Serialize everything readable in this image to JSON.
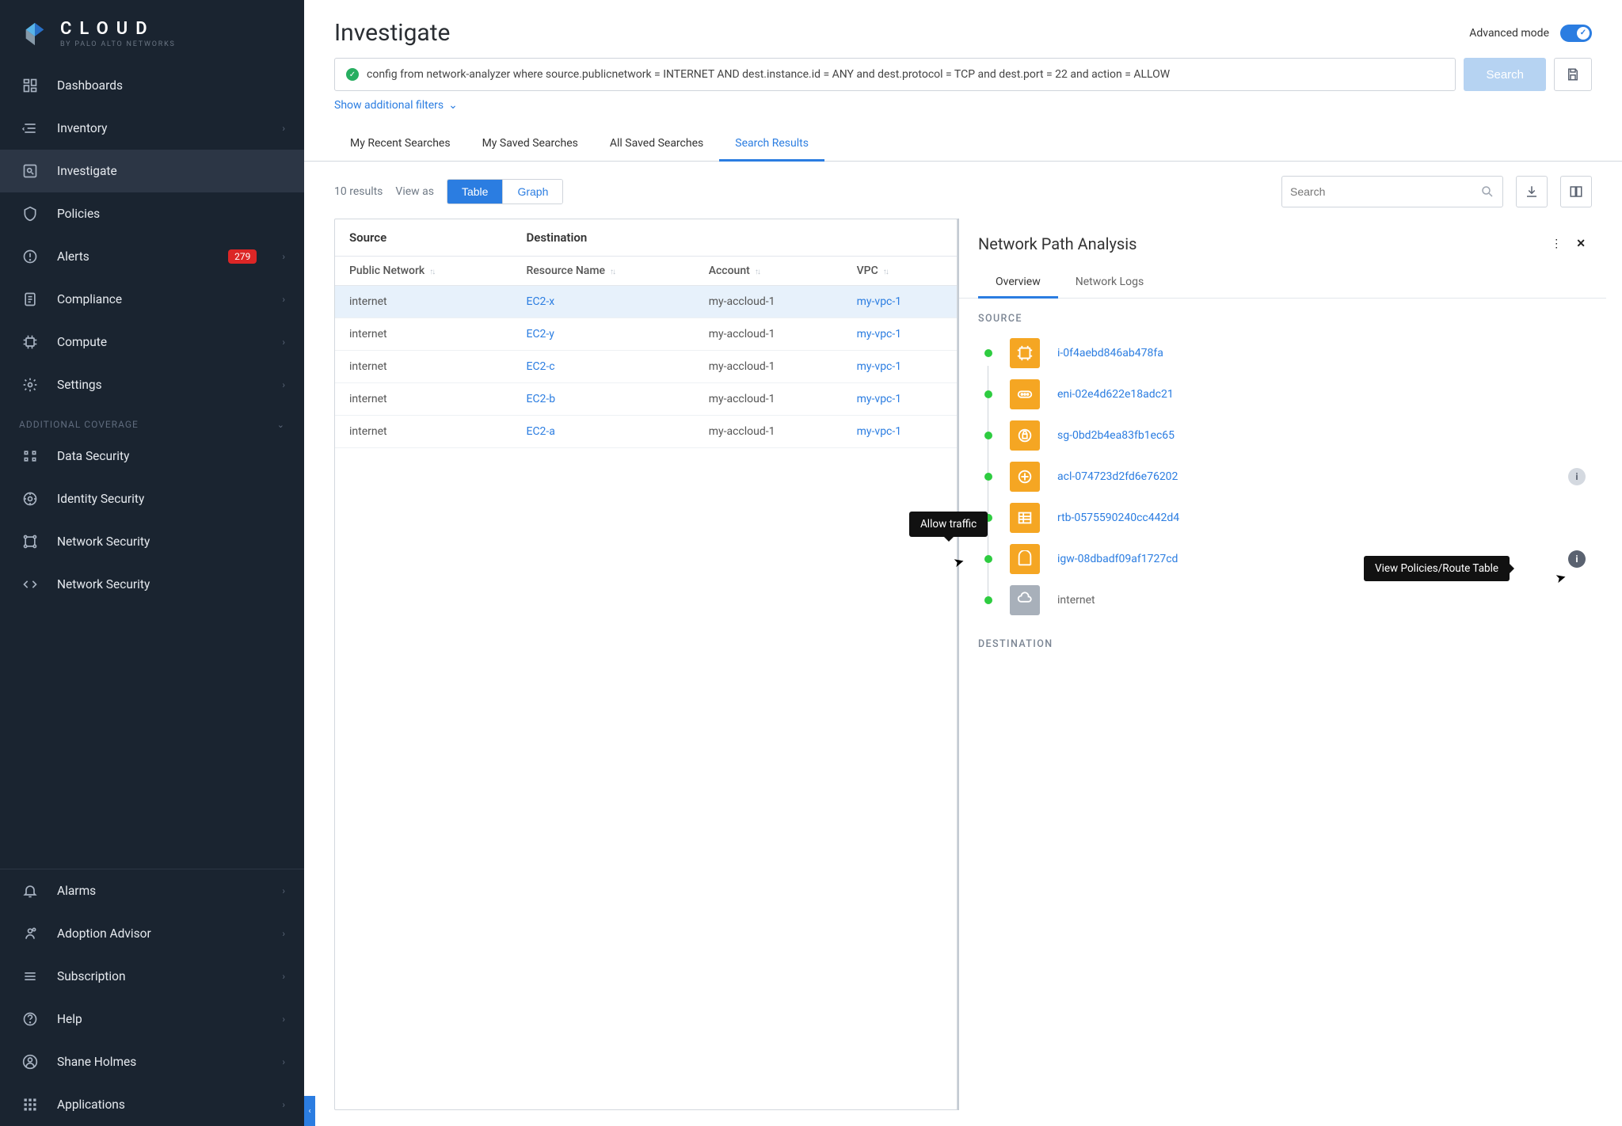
{
  "brand": {
    "title": "CLOUD",
    "subtitle": "BY PALO ALTO NETWORKS"
  },
  "sidebar": {
    "items": [
      {
        "label": "Dashboards"
      },
      {
        "label": "Inventory",
        "chev": true
      },
      {
        "label": "Investigate",
        "active": true
      },
      {
        "label": "Policies"
      },
      {
        "label": "Alerts",
        "badge": "279",
        "chev": true
      },
      {
        "label": "Compliance",
        "chev": true
      },
      {
        "label": "Compute",
        "chev": true
      },
      {
        "label": "Settings",
        "chev": true
      }
    ],
    "section_label": "ADDITIONAL COVERAGE",
    "coverage": [
      {
        "label": "Data Security"
      },
      {
        "label": "Identity Security"
      },
      {
        "label": "Network Security"
      },
      {
        "label": "Network Security"
      }
    ],
    "bottom": [
      {
        "label": "Alarms",
        "chev": true
      },
      {
        "label": "Adoption Advisor",
        "chev": true
      },
      {
        "label": "Subscription",
        "chev": true
      },
      {
        "label": "Help",
        "chev": true
      },
      {
        "label": "Shane Holmes",
        "chev": true
      },
      {
        "label": "Applications",
        "chev": true
      }
    ]
  },
  "page": {
    "title": "Investigate",
    "advanced_label": "Advanced mode"
  },
  "query": "config from network-analyzer where source.publicnetwork = INTERNET AND dest.instance.id = ANY and dest.protocol = TCP and dest.port = 22 and action = ALLOW",
  "search_btn": "Search",
  "filters_link": "Show additional filters",
  "tabs": [
    "My Recent Searches",
    "My Saved Searches",
    "All Saved Searches",
    "Search Results"
  ],
  "tabs_active": 3,
  "results": {
    "count": "10 results",
    "viewas": "View as",
    "modes": [
      "Table",
      "Graph"
    ],
    "modes_active": 0,
    "search_placeholder": "Search"
  },
  "table": {
    "groups": [
      "Source",
      "Destination"
    ],
    "columns": [
      "Public Network",
      "Resource Name",
      "Account",
      "VPC"
    ],
    "rows": [
      {
        "src": "internet",
        "res": "EC2-x",
        "acct": "my-accloud-1",
        "vpc": "my-vpc-1",
        "selected": true
      },
      {
        "src": "internet",
        "res": "EC2-y",
        "acct": "my-accloud-1",
        "vpc": "my-vpc-1"
      },
      {
        "src": "internet",
        "res": "EC2-c",
        "acct": "my-accloud-1",
        "vpc": "my-vpc-1"
      },
      {
        "src": "internet",
        "res": "EC2-b",
        "acct": "my-accloud-1",
        "vpc": "my-vpc-1"
      },
      {
        "src": "internet",
        "res": "EC2-a",
        "acct": "my-accloud-1",
        "vpc": "my-vpc-1"
      }
    ]
  },
  "panel": {
    "title": "Network Path Analysis",
    "tabs": [
      "Overview",
      "Network Logs"
    ],
    "active_tab": 0,
    "source_label": "SOURCE",
    "dest_label": "DESTINATION",
    "nodes": [
      {
        "id": "i-0f4aebd846ab478fa",
        "type": "instance",
        "color": "orange"
      },
      {
        "id": "eni-02e4d622e18adc21",
        "type": "eni",
        "color": "orange"
      },
      {
        "id": "sg-0bd2b4ea83fb1ec65",
        "type": "sg",
        "color": "orange"
      },
      {
        "id": "acl-074723d2fd6e76202",
        "type": "acl",
        "color": "orange",
        "info": "light"
      },
      {
        "id": "rtb-0575590240cc442d4",
        "type": "rtb",
        "color": "orange"
      },
      {
        "id": "igw-08dbadf09af1727cd",
        "type": "igw",
        "color": "orange",
        "info": "dark"
      },
      {
        "id": "internet",
        "type": "internet",
        "color": "grey",
        "plain": true
      }
    ]
  },
  "tooltips": {
    "allow": "Allow traffic",
    "policies": "View Policies/Route Table"
  },
  "colors": {
    "accent": "#2b7de1",
    "sidebar_bg": "#1a2430",
    "orange": "#f5a623",
    "green": "#2ecc40",
    "badge": "#dc2626"
  }
}
